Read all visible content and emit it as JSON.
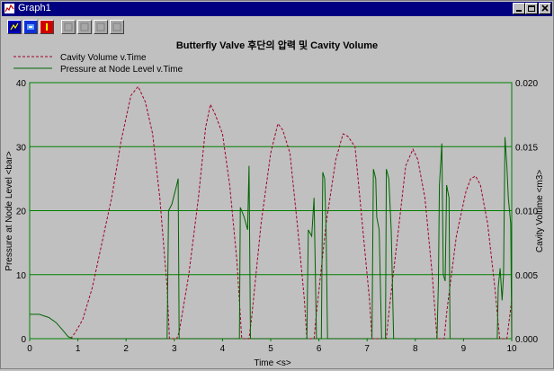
{
  "window": {
    "title": "Graph1"
  },
  "toolbar": {
    "buttons": [
      {
        "icon": "graph-icon",
        "enabled": true
      },
      {
        "icon": "settings-icon",
        "enabled": true
      },
      {
        "icon": "stop-icon",
        "enabled": true
      },
      {
        "icon": "disabled-tool-icon",
        "enabled": false
      },
      {
        "icon": "disabled-tool-icon",
        "enabled": false
      },
      {
        "icon": "disabled-tool-icon",
        "enabled": false
      },
      {
        "icon": "disabled-tool-icon",
        "enabled": false
      }
    ]
  },
  "colors": {
    "title_bar": "#000080",
    "grid": "#008000",
    "pressure_line": "#006400",
    "cavity_line": "#a0002a"
  },
  "chart_data": {
    "type": "line",
    "title": "Butterfly Valve 후단의 압력 및 Cavity Volume",
    "xlabel": "Time <s>",
    "ylabel_left": "Pressure at Node Level <bar>",
    "ylabel_right": "Cavity Volume <m3>",
    "xlim": [
      0,
      10
    ],
    "ylim_left": [
      0,
      40
    ],
    "ylim_right": [
      0,
      0.02
    ],
    "x_ticks": [
      "0",
      "1",
      "2",
      "3",
      "4",
      "5",
      "6",
      "7",
      "8",
      "9",
      "10"
    ],
    "y_ticks_left": [
      "0",
      "10",
      "20",
      "30",
      "40"
    ],
    "y_ticks_right": [
      "0.000",
      "0.005",
      "0.010",
      "0.015",
      "0.020"
    ],
    "grid": true,
    "legend_position": "top-left",
    "series": [
      {
        "name": "Cavity Volume v.Time",
        "axis": "right",
        "style": "dashed",
        "color": "#a0002a",
        "points": [
          [
            0.85,
            0
          ],
          [
            0.95,
            0.0005
          ],
          [
            1.1,
            0.0015
          ],
          [
            1.3,
            0.004
          ],
          [
            1.5,
            0.0075
          ],
          [
            1.7,
            0.011
          ],
          [
            1.9,
            0.0155
          ],
          [
            2.1,
            0.019
          ],
          [
            2.25,
            0.0197
          ],
          [
            2.4,
            0.0185
          ],
          [
            2.55,
            0.016
          ],
          [
            2.7,
            0.011
          ],
          [
            2.85,
            0.004
          ],
          [
            2.9,
            0
          ],
          [
            3.05,
            0
          ],
          [
            3.1,
            0.0005
          ],
          [
            3.3,
            0.005
          ],
          [
            3.5,
            0.011
          ],
          [
            3.65,
            0.0165
          ],
          [
            3.75,
            0.0183
          ],
          [
            3.85,
            0.0175
          ],
          [
            4.0,
            0.016
          ],
          [
            4.15,
            0.012
          ],
          [
            4.3,
            0.006
          ],
          [
            4.4,
            0
          ],
          [
            4.55,
            0
          ],
          [
            4.6,
            0.0015
          ],
          [
            4.8,
            0.009
          ],
          [
            5.0,
            0.0145
          ],
          [
            5.15,
            0.0168
          ],
          [
            5.25,
            0.0163
          ],
          [
            5.4,
            0.0145
          ],
          [
            5.55,
            0.009
          ],
          [
            5.7,
            0.003
          ],
          [
            5.75,
            0
          ],
          [
            5.9,
            0
          ],
          [
            5.95,
            0.002
          ],
          [
            6.15,
            0.009
          ],
          [
            6.35,
            0.014
          ],
          [
            6.5,
            0.016
          ],
          [
            6.6,
            0.0158
          ],
          [
            6.75,
            0.015
          ],
          [
            6.9,
            0.009
          ],
          [
            7.05,
            0.003
          ],
          [
            7.1,
            0
          ],
          [
            7.4,
            0
          ],
          [
            7.45,
            0.002
          ],
          [
            7.65,
            0.0085
          ],
          [
            7.8,
            0.0135
          ],
          [
            7.95,
            0.0148
          ],
          [
            8.05,
            0.014
          ],
          [
            8.2,
            0.011
          ],
          [
            8.35,
            0.005
          ],
          [
            8.45,
            0
          ],
          [
            8.6,
            0
          ],
          [
            8.65,
            0.002
          ],
          [
            8.85,
            0.008
          ],
          [
            9.05,
            0.0115
          ],
          [
            9.15,
            0.0125
          ],
          [
            9.25,
            0.0127
          ],
          [
            9.35,
            0.012
          ],
          [
            9.5,
            0.009
          ],
          [
            9.65,
            0.004
          ],
          [
            9.75,
            0
          ],
          [
            9.9,
            0
          ],
          [
            9.95,
            0.0015
          ],
          [
            10.0,
            0.003
          ]
        ]
      },
      {
        "name": "Pressure at Node Level v.Time",
        "axis": "left",
        "style": "solid",
        "color": "#006400",
        "points": [
          [
            0,
            3.8
          ],
          [
            0.2,
            3.8
          ],
          [
            0.4,
            3.3
          ],
          [
            0.55,
            2.5
          ],
          [
            0.7,
            1.2
          ],
          [
            0.8,
            0.3
          ],
          [
            0.9,
            0
          ],
          [
            2.85,
            0
          ],
          [
            2.88,
            20
          ],
          [
            2.95,
            21
          ],
          [
            3.05,
            24
          ],
          [
            3.08,
            25
          ],
          [
            3.1,
            0
          ],
          [
            4.35,
            0
          ],
          [
            4.37,
            20.5
          ],
          [
            4.45,
            19
          ],
          [
            4.52,
            17
          ],
          [
            4.55,
            27
          ],
          [
            4.58,
            0
          ],
          [
            5.75,
            0
          ],
          [
            5.78,
            17
          ],
          [
            5.85,
            16
          ],
          [
            5.9,
            22
          ],
          [
            5.95,
            0
          ],
          [
            6.05,
            0
          ],
          [
            6.08,
            26
          ],
          [
            6.12,
            25
          ],
          [
            6.15,
            17
          ],
          [
            6.18,
            0
          ],
          [
            7.1,
            0
          ],
          [
            7.13,
            26.5
          ],
          [
            7.18,
            25
          ],
          [
            7.2,
            19
          ],
          [
            7.25,
            17
          ],
          [
            7.3,
            0
          ],
          [
            7.38,
            0
          ],
          [
            7.4,
            26.5
          ],
          [
            7.45,
            25
          ],
          [
            7.5,
            17
          ],
          [
            7.55,
            0
          ],
          [
            8.4,
            0
          ],
          [
            8.45,
            0
          ],
          [
            8.48,
            9
          ],
          [
            8.5,
            24
          ],
          [
            8.55,
            30.5
          ],
          [
            8.58,
            10
          ],
          [
            8.62,
            9
          ],
          [
            8.65,
            24
          ],
          [
            8.7,
            22
          ],
          [
            8.72,
            0
          ],
          [
            9.7,
            0
          ],
          [
            9.72,
            8
          ],
          [
            9.76,
            11
          ],
          [
            9.8,
            6
          ],
          [
            9.83,
            10
          ],
          [
            9.86,
            31.5
          ],
          [
            9.9,
            27
          ],
          [
            9.93,
            22
          ],
          [
            9.98,
            18
          ],
          [
            10.0,
            0
          ]
        ]
      }
    ]
  }
}
